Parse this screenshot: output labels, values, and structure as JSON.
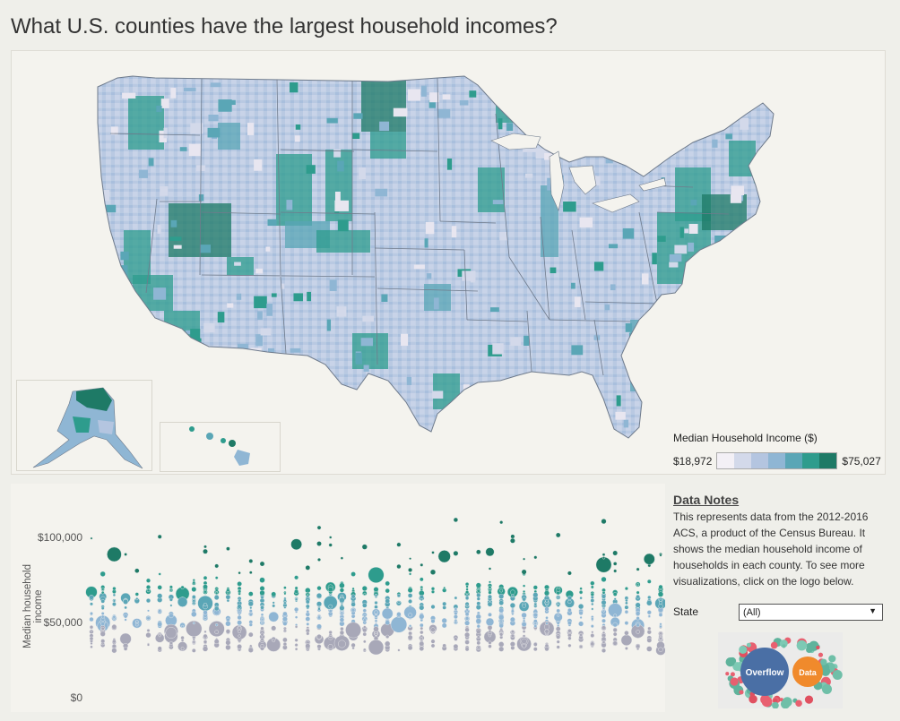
{
  "title": "What U.S. counties have the largest household incomes?",
  "legend": {
    "title": "Median Household Income ($)",
    "min_label": "$18,972",
    "max_label": "$75,027",
    "colors": [
      "#f3f0f6",
      "#d3d9ea",
      "#b4c5e0",
      "#8fb6d4",
      "#5aa6b6",
      "#2e9c8d",
      "#1e7a66"
    ]
  },
  "chart_data": {
    "type": "scatter",
    "title": "",
    "xlabel": "",
    "ylabel": "Median household income",
    "y_ticks": [
      "$100,000",
      "$50,000",
      "$0"
    ],
    "ylim": [
      0,
      125000
    ],
    "grid": false
  },
  "notes": {
    "title": "Data Notes",
    "text": "This represents data from the 2012-2016 ACS, a product of the Census Bureau. It shows the median household income of households in each county. To see more visualizations, click on the logo below."
  },
  "filter": {
    "label": "State",
    "value": "(All)"
  },
  "logo": {
    "word1": "Overflow",
    "word2": "Data"
  },
  "map_colors": {
    "state_border": "#6f7b8c",
    "county_fill_low": "#d3d9ea",
    "county_fill_high": "#1e7a66"
  }
}
